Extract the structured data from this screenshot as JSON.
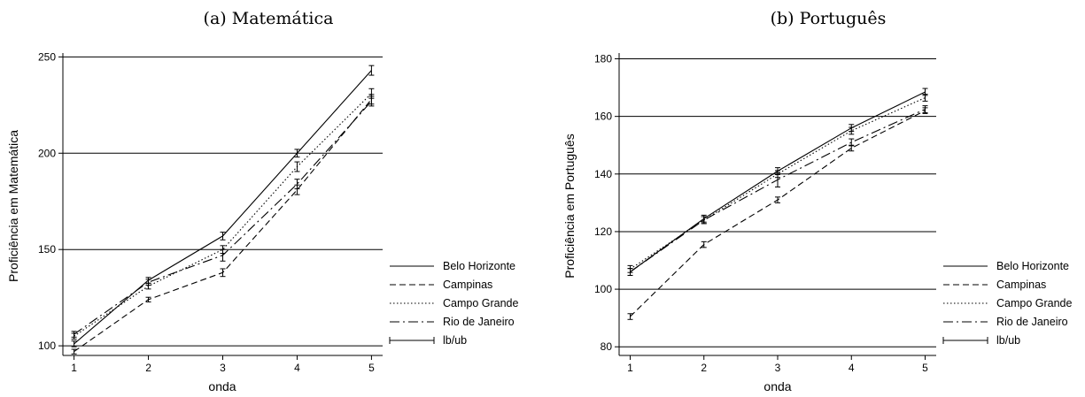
{
  "chart_data": [
    {
      "type": "line",
      "title": "(a) Matemática",
      "xlabel": "onda",
      "ylabel": "Proficiência em Matemática",
      "x": [
        1,
        2,
        3,
        4,
        5
      ],
      "xlim": [
        0.85,
        5.15
      ],
      "ylim": [
        95,
        252
      ],
      "yticks": [
        100,
        150,
        200,
        250
      ],
      "grid": true,
      "legend_position": "right",
      "series": [
        {
          "name": "Belo Horizonte",
          "dash": "solid",
          "values": [
            101,
            134,
            157,
            200,
            243
          ],
          "lb": [
            99.5,
            132.5,
            155,
            198,
            240.5
          ],
          "ub": [
            102.5,
            135.5,
            159,
            202,
            245.5
          ]
        },
        {
          "name": "Campinas",
          "dash": "dashed",
          "values": [
            97,
            124,
            138,
            181,
            228
          ],
          "lb": [
            95.8,
            122.8,
            136,
            178.5,
            225.5
          ],
          "ub": [
            98.2,
            125.2,
            140,
            183.5,
            230.5
          ]
        },
        {
          "name": "Campo Grande",
          "dash": "dotted",
          "values": [
            105,
            131,
            150,
            193,
            231
          ],
          "lb": [
            103.5,
            129.5,
            148,
            190.5,
            228.5
          ],
          "ub": [
            106.5,
            132.5,
            152,
            195.5,
            233.5
          ]
        },
        {
          "name": "Rio de Janeiro",
          "dash": "dashdot",
          "values": [
            106,
            133,
            147,
            184,
            227
          ],
          "lb": [
            104.5,
            131.5,
            144,
            181.5,
            224.5
          ],
          "ub": [
            107.5,
            134.5,
            150,
            186.5,
            229.5
          ]
        }
      ],
      "errorbar_legend": "lb/ub"
    },
    {
      "type": "line",
      "title": "(b) Português",
      "xlabel": "onda",
      "ylabel": "Proficiência em Português",
      "x": [
        1,
        2,
        3,
        4,
        5
      ],
      "xlim": [
        0.85,
        5.15
      ],
      "ylim": [
        77,
        182
      ],
      "yticks": [
        80,
        100,
        120,
        140,
        160,
        180
      ],
      "grid": true,
      "legend_position": "right",
      "series": [
        {
          "name": "Belo Horizonte",
          "dash": "solid",
          "values": [
            106,
            124.5,
            141,
            156,
            168.5
          ],
          "lb": [
            104.8,
            123.3,
            139.8,
            154.8,
            167.3
          ],
          "ub": [
            107.2,
            125.7,
            142.2,
            157.2,
            169.7
          ]
        },
        {
          "name": "Campinas",
          "dash": "dashed",
          "values": [
            90.5,
            115.5,
            131,
            149,
            162
          ],
          "lb": [
            89.5,
            114.5,
            130,
            148,
            161
          ],
          "ub": [
            91.5,
            116.5,
            132,
            150,
            163
          ]
        },
        {
          "name": "Campo Grande",
          "dash": "dotted",
          "values": [
            107,
            124,
            140,
            155,
            166.5
          ],
          "lb": [
            105.8,
            122.8,
            138.8,
            153.8,
            165.3
          ],
          "ub": [
            108.2,
            125.2,
            141.2,
            156.2,
            167.7
          ]
        },
        {
          "name": "Rio de Janeiro",
          "dash": "dashdot",
          "values": [
            106,
            124,
            138,
            151,
            162.5
          ],
          "lb": [
            104.8,
            122.8,
            135.5,
            149.8,
            161.3
          ],
          "ub": [
            107.2,
            125.2,
            140.5,
            152.2,
            163.7
          ]
        }
      ],
      "errorbar_legend": "lb/ub"
    }
  ]
}
